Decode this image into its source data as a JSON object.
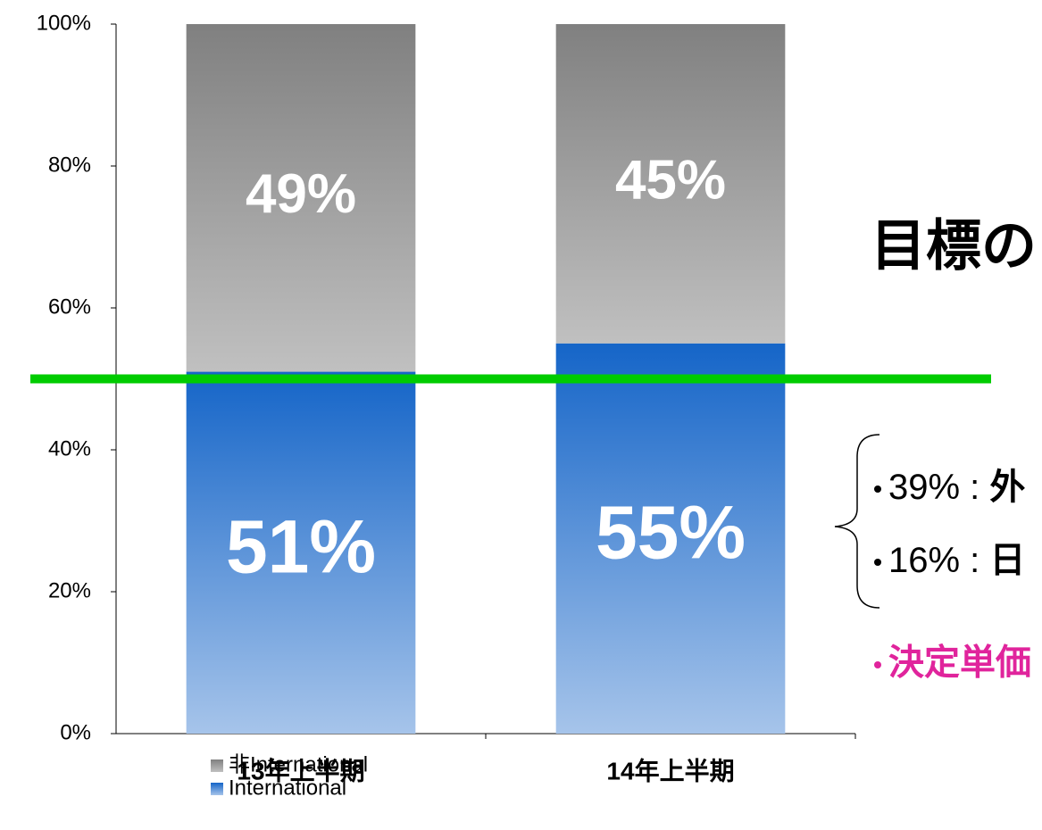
{
  "chart_data": {
    "type": "stacked_bar",
    "categories": [
      "13年上半期",
      "14年上半期"
    ],
    "series": [
      {
        "name": "International",
        "color": "#1565c8",
        "values": [
          51,
          55
        ],
        "value_labels": [
          "51%",
          "55%"
        ]
      },
      {
        "name": "非International",
        "color": "#808080",
        "values": [
          49,
          45
        ],
        "value_labels": [
          "49%",
          "45%"
        ]
      }
    ],
    "ylim": [
      0,
      100
    ],
    "yticks": [
      {
        "value": 0,
        "label": "0%"
      },
      {
        "value": 20,
        "label": "20%"
      },
      {
        "value": 40,
        "label": "40%"
      },
      {
        "value": 60,
        "label": "60%"
      },
      {
        "value": 80,
        "label": "80%"
      },
      {
        "value": 100,
        "label": "100%"
      }
    ],
    "reference_line": {
      "value": 50,
      "color": "#00cc00"
    },
    "legend": "bottom-right",
    "annotation_title": "目標の",
    "notes": [
      {
        "text": "39% : ",
        "emphasis": "外"
      },
      {
        "text": "16% : ",
        "emphasis": "日"
      }
    ],
    "highlight": {
      "text": "決定単価",
      "color": "#e0249c"
    }
  }
}
